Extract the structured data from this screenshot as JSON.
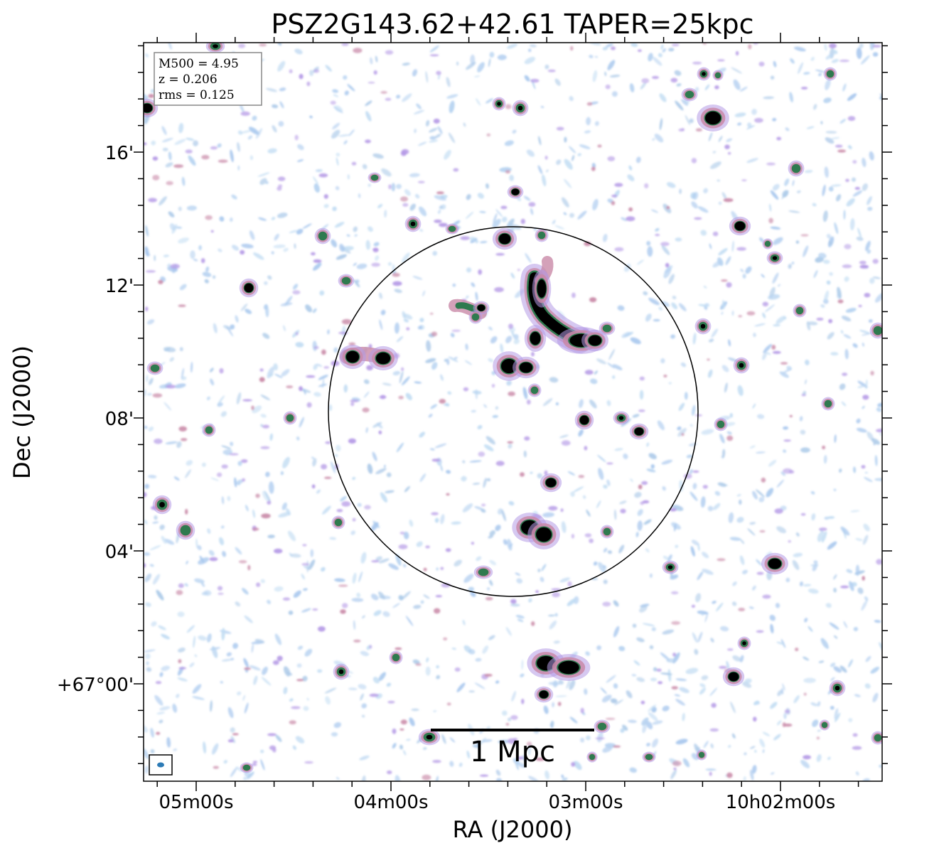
{
  "title": "PSZ2G143.62+42.61 TAPER=25kpc",
  "xlabel": "RA (J2000)",
  "ylabel": "Dec (J2000)",
  "x_ticks": [
    "05m00s",
    "04m00s",
    "03m00s",
    "10h02m00s"
  ],
  "y_ticks": [
    "16'",
    "12'",
    "08'",
    "04'",
    "+67°00'"
  ],
  "info": {
    "line1": "M500 = 4.95",
    "line2": "z = 0.206",
    "line3": "rms = 0.125"
  },
  "scalebar_label": "1 Mpc",
  "colors": {
    "faint": "#a9c8ee",
    "mid": "#b59ae6",
    "warm": "#c98aa8",
    "rim": "#2f7a4f",
    "core": "#000000",
    "beam": "#2d7bb6"
  }
}
